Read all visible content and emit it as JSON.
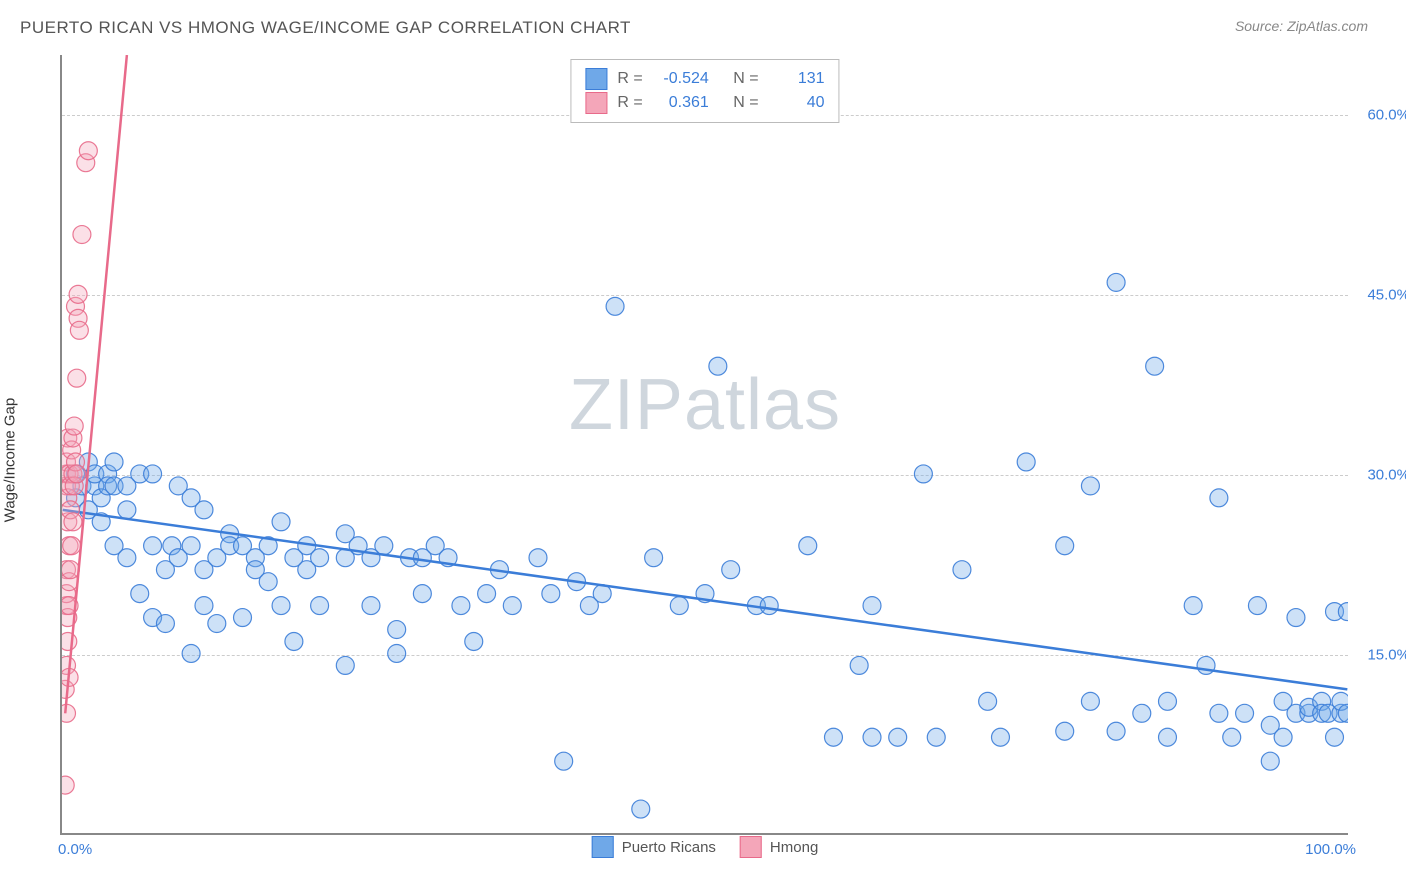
{
  "title": "PUERTO RICAN VS HMONG WAGE/INCOME GAP CORRELATION CHART",
  "source": "Source: ZipAtlas.com",
  "ylabel": "Wage/Income Gap",
  "watermark_a": "ZIP",
  "watermark_b": "atlas",
  "chart": {
    "type": "scatter",
    "background_color": "#ffffff",
    "grid_color": "#cccccc",
    "grid_style": "dashed",
    "axis_color": "#888888",
    "text_color": "#555555",
    "axis_label_color": "#3b7dd8",
    "title_fontsize": 17,
    "label_fontsize": 15,
    "tick_fontsize": 15,
    "marker_radius": 9,
    "marker_fill_opacity": 0.35,
    "marker_stroke_opacity": 0.9,
    "marker_stroke_width": 1.2,
    "trend_line_width": 2.5,
    "xlim": [
      0,
      100
    ],
    "ylim": [
      0,
      65
    ],
    "yticks": [
      15,
      30,
      45,
      60
    ],
    "ytick_labels": [
      "15.0%",
      "30.0%",
      "45.0%",
      "60.0%"
    ],
    "xtick_labels": {
      "min": "0.0%",
      "max": "100.0%"
    },
    "series": [
      {
        "name": "Puerto Ricans",
        "color": "#6fa8e8",
        "stroke": "#3b7dd8",
        "r_value": "-0.524",
        "n_value": "131",
        "trend": {
          "x1": 0,
          "y1": 27,
          "x2": 100,
          "y2": 12
        },
        "points": [
          [
            1,
            28
          ],
          [
            1,
            30
          ],
          [
            1.5,
            29
          ],
          [
            2,
            31
          ],
          [
            2,
            27
          ],
          [
            2.5,
            29
          ],
          [
            2.5,
            30
          ],
          [
            3,
            28
          ],
          [
            3,
            26
          ],
          [
            3.5,
            30
          ],
          [
            3.5,
            29
          ],
          [
            4,
            29
          ],
          [
            4,
            31
          ],
          [
            4,
            24
          ],
          [
            5,
            27
          ],
          [
            5,
            29
          ],
          [
            5,
            23
          ],
          [
            6,
            30
          ],
          [
            6,
            20
          ],
          [
            7,
            18
          ],
          [
            7,
            24
          ],
          [
            7,
            30
          ],
          [
            8,
            22
          ],
          [
            8,
            17.5
          ],
          [
            8.5,
            24
          ],
          [
            9,
            23
          ],
          [
            9,
            29
          ],
          [
            10,
            24
          ],
          [
            10,
            28
          ],
          [
            10,
            15
          ],
          [
            11,
            22
          ],
          [
            11,
            27
          ],
          [
            11,
            19
          ],
          [
            12,
            17.5
          ],
          [
            12,
            23
          ],
          [
            13,
            25
          ],
          [
            13,
            24
          ],
          [
            14,
            18
          ],
          [
            14,
            24
          ],
          [
            15,
            23
          ],
          [
            15,
            22
          ],
          [
            16,
            21
          ],
          [
            16,
            24
          ],
          [
            17,
            19
          ],
          [
            17,
            26
          ],
          [
            18,
            23
          ],
          [
            18,
            16
          ],
          [
            19,
            22
          ],
          [
            19,
            24
          ],
          [
            20,
            23
          ],
          [
            20,
            19
          ],
          [
            22,
            25
          ],
          [
            22,
            23
          ],
          [
            22,
            14
          ],
          [
            23,
            24
          ],
          [
            24,
            23
          ],
          [
            24,
            19
          ],
          [
            25,
            24
          ],
          [
            26,
            15
          ],
          [
            26,
            17
          ],
          [
            27,
            23
          ],
          [
            28,
            23
          ],
          [
            28,
            20
          ],
          [
            29,
            24
          ],
          [
            30,
            23
          ],
          [
            31,
            19
          ],
          [
            32,
            16
          ],
          [
            33,
            20
          ],
          [
            34,
            22
          ],
          [
            35,
            19
          ],
          [
            37,
            23
          ],
          [
            38,
            20
          ],
          [
            39,
            6
          ],
          [
            40,
            21
          ],
          [
            41,
            19
          ],
          [
            42,
            20
          ],
          [
            43,
            44
          ],
          [
            45,
            2
          ],
          [
            46,
            23
          ],
          [
            48,
            19
          ],
          [
            50,
            20
          ],
          [
            51,
            39
          ],
          [
            52,
            22
          ],
          [
            54,
            19
          ],
          [
            55,
            19
          ],
          [
            58,
            24
          ],
          [
            60,
            8
          ],
          [
            62,
            14
          ],
          [
            63,
            19
          ],
          [
            63,
            8
          ],
          [
            65,
            8
          ],
          [
            67,
            30
          ],
          [
            68,
            8
          ],
          [
            70,
            22
          ],
          [
            72,
            11
          ],
          [
            73,
            8
          ],
          [
            75,
            31
          ],
          [
            78,
            24
          ],
          [
            78,
            8.5
          ],
          [
            80,
            11
          ],
          [
            80,
            29
          ],
          [
            82,
            46
          ],
          [
            82,
            8.5
          ],
          [
            84,
            10
          ],
          [
            85,
            39
          ],
          [
            86,
            11
          ],
          [
            86,
            8
          ],
          [
            88,
            19
          ],
          [
            89,
            14
          ],
          [
            90,
            10
          ],
          [
            90,
            28
          ],
          [
            91,
            8
          ],
          [
            92,
            10
          ],
          [
            93,
            19
          ],
          [
            94,
            9
          ],
          [
            94,
            6
          ],
          [
            95,
            11
          ],
          [
            95,
            8
          ],
          [
            96,
            10
          ],
          [
            96,
            18
          ],
          [
            97,
            10
          ],
          [
            97,
            10.5
          ],
          [
            98,
            11
          ],
          [
            98,
            10
          ],
          [
            98.5,
            10
          ],
          [
            99,
            18.5
          ],
          [
            99,
            8
          ],
          [
            99.5,
            10
          ],
          [
            99.5,
            11
          ],
          [
            100,
            10
          ],
          [
            100,
            18.5
          ]
        ]
      },
      {
        "name": "Hmong",
        "color": "#f4a6b9",
        "stroke": "#e86a8a",
        "r_value": "0.361",
        "n_value": "40",
        "trend": {
          "x1": 0.2,
          "y1": 10,
          "x2": 5,
          "y2": 65
        },
        "points": [
          [
            0.2,
            4
          ],
          [
            0.2,
            12
          ],
          [
            0.3,
            19
          ],
          [
            0.3,
            20
          ],
          [
            0.3,
            22
          ],
          [
            0.3,
            14
          ],
          [
            0.3,
            29
          ],
          [
            0.3,
            30
          ],
          [
            0.3,
            31
          ],
          [
            0.4,
            18
          ],
          [
            0.4,
            26
          ],
          [
            0.4,
            28
          ],
          [
            0.4,
            33
          ],
          [
            0.5,
            19
          ],
          [
            0.5,
            21
          ],
          [
            0.5,
            24
          ],
          [
            0.5,
            30
          ],
          [
            0.6,
            22
          ],
          [
            0.6,
            27
          ],
          [
            0.6,
            29
          ],
          [
            0.7,
            32
          ],
          [
            0.7,
            24
          ],
          [
            0.8,
            30
          ],
          [
            0.8,
            33
          ],
          [
            0.8,
            26
          ],
          [
            0.9,
            29
          ],
          [
            0.9,
            34
          ],
          [
            1.0,
            31
          ],
          [
            1.0,
            44
          ],
          [
            1.1,
            38
          ],
          [
            1.1,
            30
          ],
          [
            1.2,
            43
          ],
          [
            1.2,
            45
          ],
          [
            1.3,
            42
          ],
          [
            1.5,
            50
          ],
          [
            1.8,
            56
          ],
          [
            2.0,
            57
          ],
          [
            0.3,
            10
          ],
          [
            0.4,
            16
          ],
          [
            0.5,
            13
          ]
        ]
      }
    ]
  },
  "legend_top": {
    "r_label": "R =",
    "n_label": "N ="
  }
}
